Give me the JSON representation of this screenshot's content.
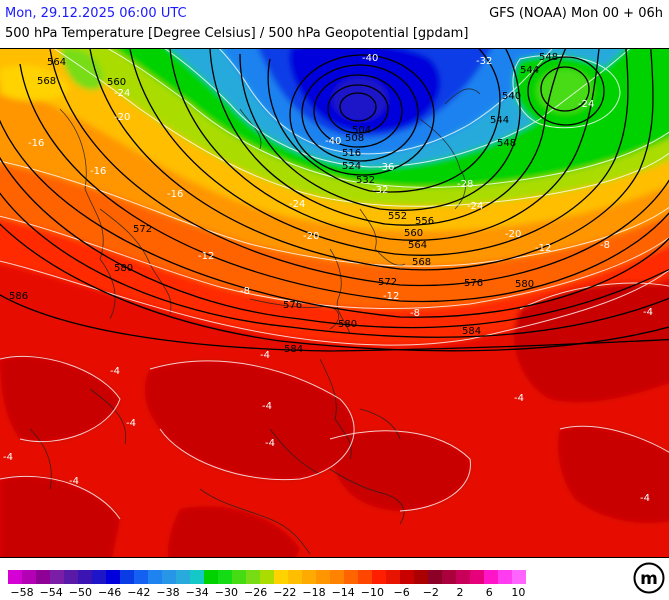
{
  "header": {
    "datetime": "Mon, 29.12.2025 06:00 UTC",
    "title": "500 hPa Temperature [Degree Celsius] / 500 hPa Geopotential [gpdam]",
    "model_run": "GFS (NOAA) Mon 00 + 06h"
  },
  "map": {
    "contour_labels": [
      {
        "name": "geopot-564-nw",
        "text": "564"
      },
      {
        "name": "geopot-568-nw",
        "text": "568"
      },
      {
        "name": "geopot-560-n",
        "text": "560"
      },
      {
        "name": "geopot-548-ne",
        "text": "548"
      },
      {
        "name": "geopot-544-ne",
        "text": "544"
      },
      {
        "name": "geopot-540-ne",
        "text": "540"
      },
      {
        "name": "geopot-544-e",
        "text": "544"
      },
      {
        "name": "geopot-548-e",
        "text": "548"
      },
      {
        "name": "geopot-504-low",
        "text": "504"
      },
      {
        "name": "geopot-508-low",
        "text": "508"
      },
      {
        "name": "geopot-516-low",
        "text": "516"
      },
      {
        "name": "geopot-524-low",
        "text": "524"
      },
      {
        "name": "geopot-532-low",
        "text": "532"
      },
      {
        "name": "geopot-552-c",
        "text": "552"
      },
      {
        "name": "geopot-556-c",
        "text": "556"
      },
      {
        "name": "geopot-560-c",
        "text": "560"
      },
      {
        "name": "geopot-564-c",
        "text": "564"
      },
      {
        "name": "geopot-568-c",
        "text": "568"
      },
      {
        "name": "geopot-572-w",
        "text": "572"
      },
      {
        "name": "geopot-572-c",
        "text": "572"
      },
      {
        "name": "geopot-576-c",
        "text": "576"
      },
      {
        "name": "geopot-576-e",
        "text": "576"
      },
      {
        "name": "geopot-580-w",
        "text": "580"
      },
      {
        "name": "geopot-580-c",
        "text": "580"
      },
      {
        "name": "geopot-580-e",
        "text": "580"
      },
      {
        "name": "geopot-584-c",
        "text": "584"
      },
      {
        "name": "geopot-584-e",
        "text": "584"
      },
      {
        "name": "geopot-586-w",
        "text": "586"
      },
      {
        "name": "temp-m40-n",
        "text": "-40"
      },
      {
        "name": "temp-m32-ne",
        "text": "-32"
      },
      {
        "name": "temp-m40-low",
        "text": "-40"
      },
      {
        "name": "temp-m36-low",
        "text": "-36"
      },
      {
        "name": "temp-m32-c",
        "text": "-32"
      },
      {
        "name": "temp-m28-e",
        "text": "-28"
      },
      {
        "name": "temp-m24-c",
        "text": "-24"
      },
      {
        "name": "temp-m24-e",
        "text": "-24"
      },
      {
        "name": "temp-m24-ne",
        "text": "-24"
      },
      {
        "name": "temp-m24-nw",
        "text": "-24"
      },
      {
        "name": "temp-m20-nw",
        "text": "-20"
      },
      {
        "name": "temp-m16-w",
        "text": "-16"
      },
      {
        "name": "temp-m16-c",
        "text": "-16"
      },
      {
        "name": "temp-m20-c",
        "text": "-20"
      },
      {
        "name": "temp-m20-e",
        "text": "-20"
      },
      {
        "name": "temp-m16-nw",
        "text": "-16"
      },
      {
        "name": "temp-m12-w",
        "text": "-12"
      },
      {
        "name": "temp-m12-c",
        "text": "-12"
      },
      {
        "name": "temp-m12-e",
        "text": "-12"
      },
      {
        "name": "temp-m8-c",
        "text": "-8"
      },
      {
        "name": "temp-m8-c2",
        "text": "-8"
      },
      {
        "name": "temp-m8-e",
        "text": "-8"
      },
      {
        "name": "temp-m4-c",
        "text": "-4"
      },
      {
        "name": "temp-m4-c2",
        "text": "-4"
      },
      {
        "name": "temp-m4-e",
        "text": "-4"
      },
      {
        "name": "temp-m4-e2",
        "text": "-4"
      },
      {
        "name": "temp-m4-w",
        "text": "-4"
      },
      {
        "name": "temp-m4-w2",
        "text": "-4"
      },
      {
        "name": "temp-m4-s",
        "text": "-4"
      },
      {
        "name": "temp-m4-s2",
        "text": "-4"
      },
      {
        "name": "temp-m4-se",
        "text": "-4"
      },
      {
        "name": "temp-m4-nw",
        "text": "-4"
      }
    ]
  },
  "legend": {
    "colors": [
      "#d400d4",
      "#b400b4",
      "#8f0096",
      "#7a1ea8",
      "#5a1aa8",
      "#3c14b4",
      "#1e14c8",
      "#0000dc",
      "#0a3ce6",
      "#1460f0",
      "#1e82f0",
      "#2896e6",
      "#28aadc",
      "#14c8c8",
      "#00d200",
      "#14dc14",
      "#46dc14",
      "#78dc14",
      "#aadc00",
      "#ffd200",
      "#ffbe00",
      "#ffaa00",
      "#ff9600",
      "#ff8200",
      "#ff6400",
      "#ff4600",
      "#ff1e00",
      "#e61400",
      "#c80000",
      "#aa0000",
      "#8c0028",
      "#aa003c",
      "#c8005a",
      "#e6007a",
      "#ff14c8",
      "#ff3cf0",
      "#ff64ff"
    ],
    "ticks": [
      "−58",
      "−54",
      "−50",
      "−46",
      "−42",
      "−38",
      "−34",
      "−30",
      "−26",
      "−22",
      "−18",
      "−14",
      "−10",
      "−6",
      "−2",
      "2",
      "6",
      "10"
    ]
  },
  "logo": {
    "icon": "meteologix-logo-icon",
    "text": "m"
  }
}
